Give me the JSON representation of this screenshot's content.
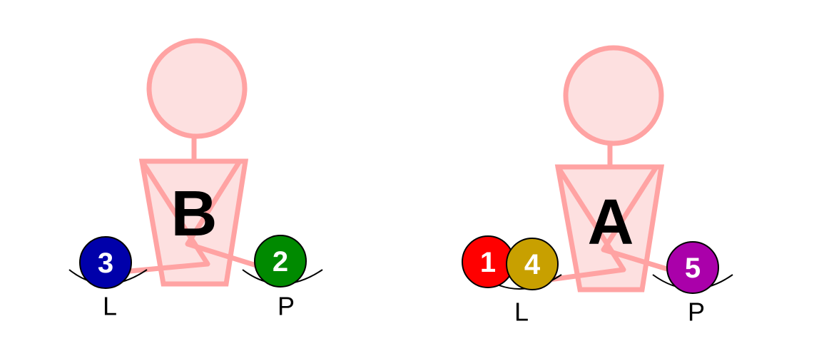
{
  "colors": {
    "figure_fill": "#fde0e0",
    "figure_stroke": "#ffa3a3",
    "hand_cup": "#000000",
    "letter": "#000000",
    "ball_text": "#ffffff"
  },
  "figures": [
    {
      "letter": "B",
      "left_hand": {
        "label": "L",
        "balls": [
          {
            "number": "3",
            "color": "#0000aa"
          }
        ]
      },
      "right_hand": {
        "label": "P",
        "balls": [
          {
            "number": "2",
            "color": "#008a00"
          }
        ]
      }
    },
    {
      "letter": "A",
      "left_hand": {
        "label": "L",
        "balls": [
          {
            "number": "1",
            "color": "#ff0000"
          },
          {
            "number": "4",
            "color": "#c8a000"
          }
        ]
      },
      "right_hand": {
        "label": "P",
        "balls": [
          {
            "number": "5",
            "color": "#aa00aa"
          }
        ]
      }
    }
  ]
}
